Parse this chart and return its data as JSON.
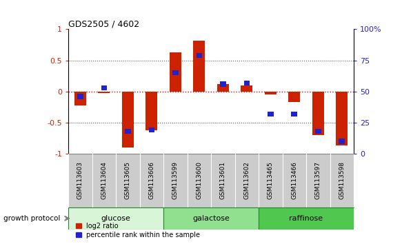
{
  "title": "GDS2505 / 4602",
  "samples": [
    "GSM113603",
    "GSM113604",
    "GSM113605",
    "GSM113606",
    "GSM113599",
    "GSM113600",
    "GSM113601",
    "GSM113602",
    "GSM113465",
    "GSM113466",
    "GSM113597",
    "GSM113598"
  ],
  "log2_ratio": [
    -0.22,
    -0.02,
    -0.9,
    -0.62,
    0.63,
    0.82,
    0.12,
    0.1,
    -0.05,
    -0.17,
    -0.7,
    -0.87
  ],
  "percentile_rank": [
    46,
    53,
    18,
    19,
    65,
    79,
    56,
    57,
    32,
    32,
    18,
    10
  ],
  "groups": [
    {
      "name": "glucose",
      "start": 0,
      "end": 4,
      "color": "#d8f5d8"
    },
    {
      "name": "galactose",
      "start": 4,
      "end": 8,
      "color": "#90e090"
    },
    {
      "name": "raffinose",
      "start": 8,
      "end": 12,
      "color": "#50c850"
    }
  ],
  "bar_color_red": "#cc2200",
  "bar_color_blue": "#2222cc",
  "ylim_left": [
    -1,
    1
  ],
  "ylim_right": [
    0,
    100
  ],
  "yticks_left": [
    -1,
    -0.5,
    0,
    0.5,
    1
  ],
  "yticks_right": [
    0,
    25,
    50,
    75,
    100
  ],
  "ytick_labels_right": [
    "0",
    "25",
    "50",
    "75",
    "100%"
  ],
  "zero_line_color": "#dd0000",
  "dotted_line_color": "#555555",
  "growth_protocol_label": "growth protocol",
  "legend_log2": "log2 ratio",
  "legend_pct": "percentile rank within the sample",
  "bg_color": "#ffffff",
  "label_color_left": "#cc2200",
  "label_color_right": "#2222cc",
  "label_bg": "#cccccc",
  "label_border": "#888888"
}
